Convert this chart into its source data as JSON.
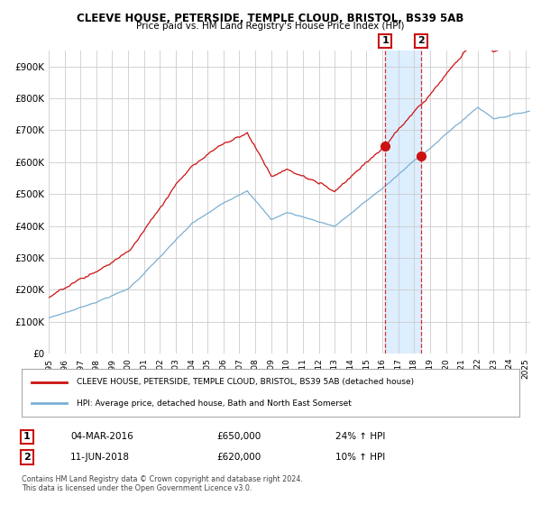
{
  "title1": "CLEEVE HOUSE, PETERSIDE, TEMPLE CLOUD, BRISTOL, BS39 5AB",
  "title2": "Price paid vs. HM Land Registry's House Price Index (HPI)",
  "legend_line1": "CLEEVE HOUSE, PETERSIDE, TEMPLE CLOUD, BRISTOL, BS39 5AB (detached house)",
  "legend_line2": "HPI: Average price, detached house, Bath and North East Somerset",
  "sale1_label": "1",
  "sale1_date": "04-MAR-2016",
  "sale1_price": "£650,000",
  "sale1_hpi": "24% ↑ HPI",
  "sale1_year": 2016.17,
  "sale1_value": 650000,
  "sale2_label": "2",
  "sale2_date": "11-JUN-2018",
  "sale2_price": "£620,000",
  "sale2_hpi": "10% ↑ HPI",
  "sale2_year": 2018.44,
  "sale2_value": 620000,
  "hpi_color": "#7bafd4",
  "property_color": "#cc1111",
  "marker_color": "#cc1111",
  "background_color": "#ffffff",
  "grid_color": "#cccccc",
  "highlight_color": "#ddeeff",
  "ylim": [
    0,
    950000
  ],
  "yticks": [
    0,
    100000,
    200000,
    300000,
    400000,
    500000,
    600000,
    700000,
    800000,
    900000
  ],
  "ytick_labels": [
    "£0",
    "£100K",
    "£200K",
    "£300K",
    "£400K",
    "£500K",
    "£600K",
    "£700K",
    "£800K",
    "£900K"
  ],
  "footer": "Contains HM Land Registry data © Crown copyright and database right 2024.\nThis data is licensed under the Open Government Licence v3.0.",
  "xstart": 1995,
  "xend": 2025
}
